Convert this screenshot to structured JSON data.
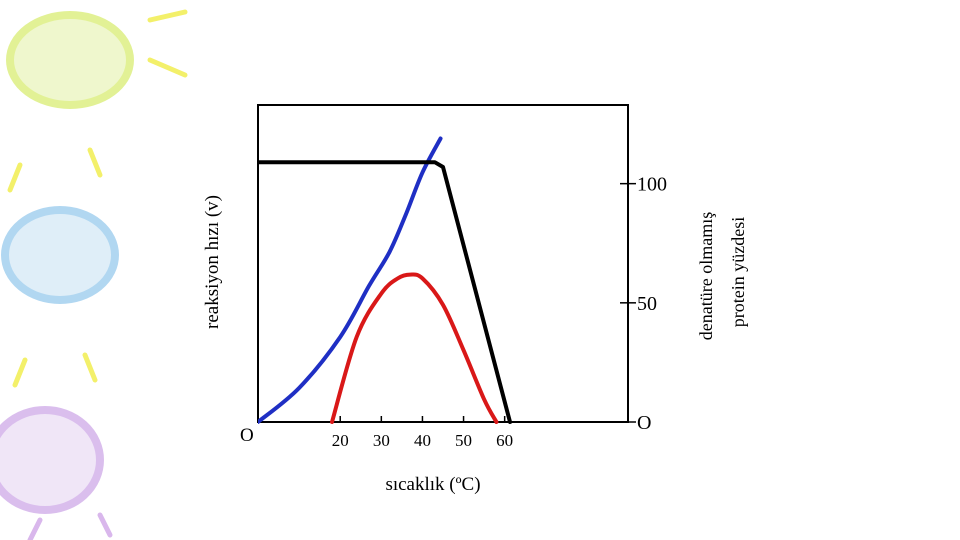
{
  "chart_data": {
    "type": "line",
    "x": {
      "label": "sıcaklık (ºC)",
      "ticks": [
        20,
        30,
        40,
        50,
        60
      ],
      "range": [
        0,
        90
      ]
    },
    "y_left": {
      "label": "reaksiyon hızı (v)",
      "origin_label": "O"
    },
    "y_right": {
      "label_lines": [
        "denatüre olmamış",
        "protein yüzdesi"
      ],
      "ticks": [
        {
          "value": 0,
          "label": "O"
        },
        {
          "value": 50,
          "label": "50"
        },
        {
          "value": 100,
          "label": "100"
        }
      ],
      "range": [
        0,
        133
      ]
    },
    "series": [
      {
        "name": "blue rising curve",
        "color": "#1f2fc4",
        "axis": "left",
        "points": [
          [
            0,
            0
          ],
          [
            10,
            18
          ],
          [
            20,
            45
          ],
          [
            27,
            72
          ],
          [
            32,
            90
          ],
          [
            36,
            110
          ],
          [
            40,
            132
          ],
          [
            44.4,
            150
          ]
        ]
      },
      {
        "name": "red enzyme activity",
        "color": "#d91818",
        "axis": "left",
        "points": [
          [
            18,
            0
          ],
          [
            24,
            45
          ],
          [
            30,
            68
          ],
          [
            34,
            76
          ],
          [
            37,
            78
          ],
          [
            40,
            76
          ],
          [
            45,
            62
          ],
          [
            50,
            38
          ],
          [
            55,
            12
          ],
          [
            58,
            0
          ]
        ]
      },
      {
        "name": "black undenatured protein",
        "color": "#000000",
        "axis": "right",
        "points": [
          [
            0,
            109
          ],
          [
            43,
            109
          ],
          [
            45,
            107
          ],
          [
            61.3,
            0
          ]
        ]
      }
    ]
  },
  "colors": {
    "blue": "#1f2fc4",
    "red": "#d91818",
    "black": "#000000"
  }
}
